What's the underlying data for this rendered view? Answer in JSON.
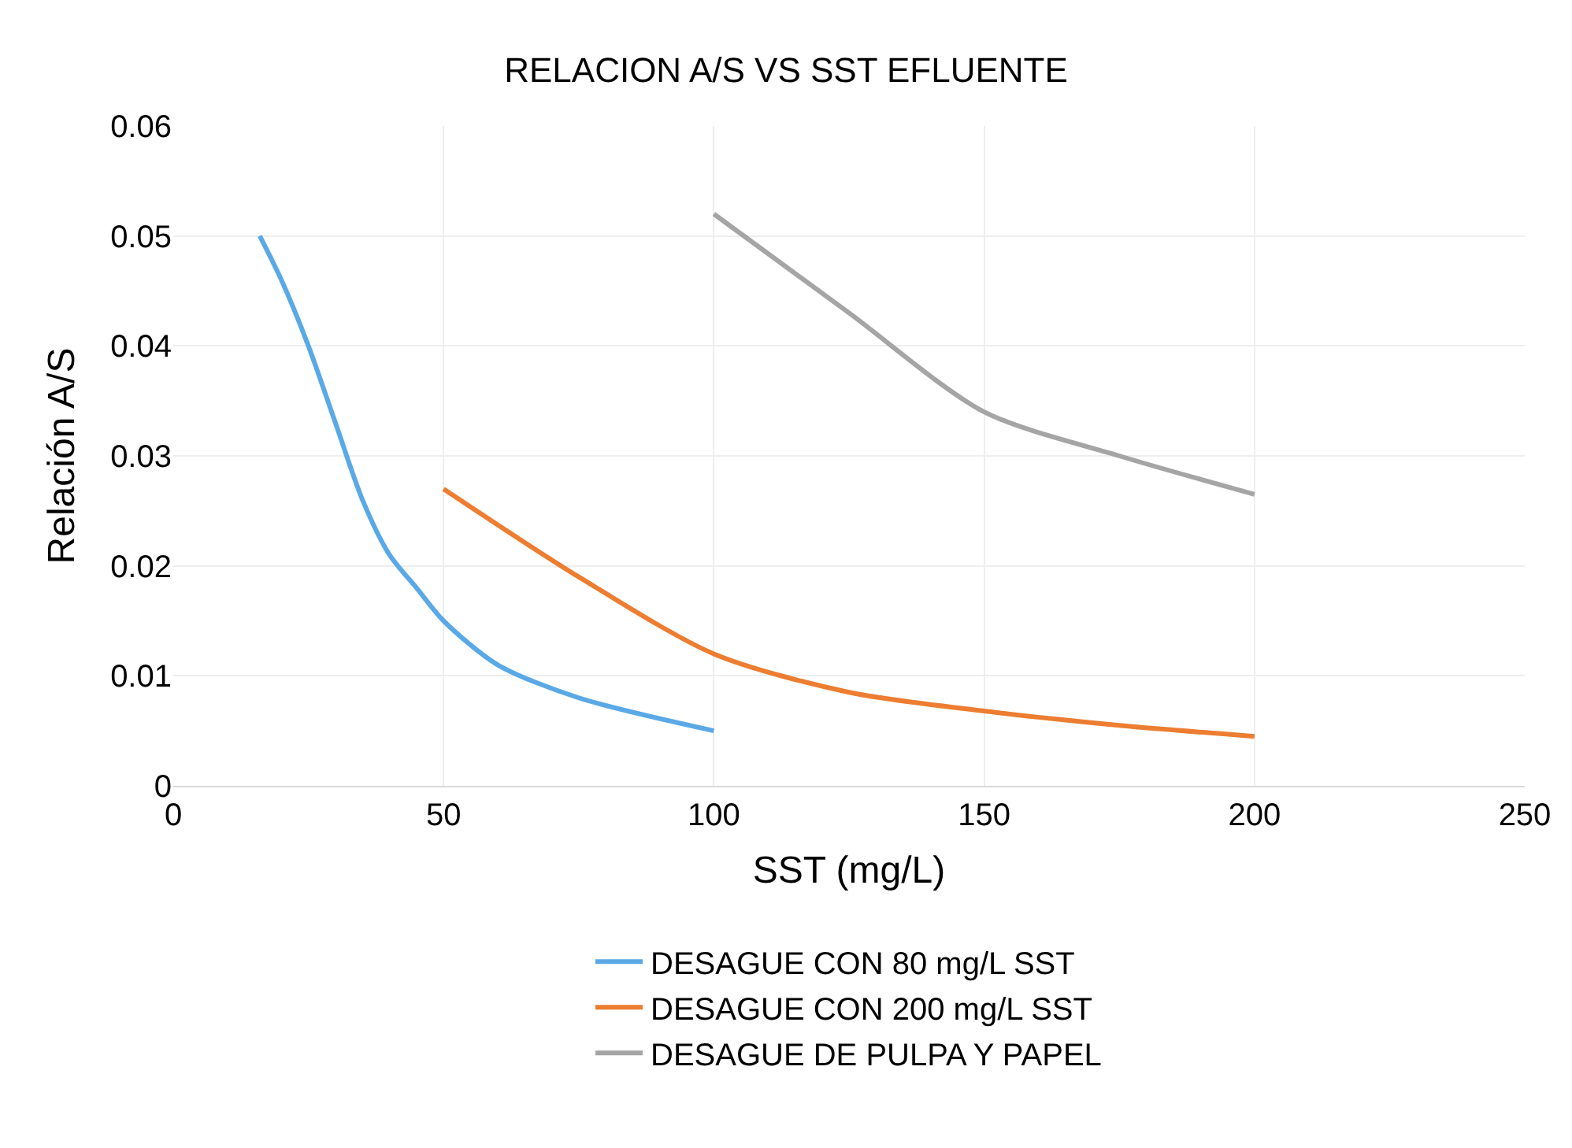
{
  "chart_data": {
    "type": "line",
    "title": "RELACION A/S VS SST EFLUENTE",
    "xlabel": "SST (mg/L)",
    "ylabel": "Relación A/S",
    "series": [
      {
        "name": "DESAGUE CON 80 mg/L SST",
        "color": "#5aa9e6",
        "x": [
          16,
          20,
          25,
          30,
          35,
          40,
          45,
          50,
          60,
          75,
          100
        ],
        "values": [
          0.05,
          0.046,
          0.04,
          0.033,
          0.026,
          0.021,
          0.018,
          0.015,
          0.011,
          0.008,
          0.005
        ]
      },
      {
        "name": "DESAGUE CON 200 mg/L SST",
        "color": "#ed7d31",
        "x": [
          50,
          75,
          100,
          125,
          150,
          175,
          200
        ],
        "values": [
          0.027,
          0.019,
          0.012,
          0.0085,
          0.0068,
          0.0055,
          0.0045
        ]
      },
      {
        "name": "DESAGUE DE PULPA Y PAPEL",
        "color": "#a5a5a5",
        "x": [
          100,
          125,
          150,
          175,
          200
        ],
        "values": [
          0.052,
          0.043,
          0.034,
          0.03,
          0.0265
        ]
      }
    ],
    "xlim": [
      0,
      250
    ],
    "xticks": [
      0,
      50,
      100,
      150,
      200,
      250
    ],
    "ylim": [
      0,
      0.06
    ],
    "yticks": [
      0,
      0.01,
      0.02,
      0.03,
      0.04,
      0.05,
      0.06
    ],
    "grid": true,
    "legend": "bottom",
    "marker": "none",
    "line_style": "solid"
  }
}
